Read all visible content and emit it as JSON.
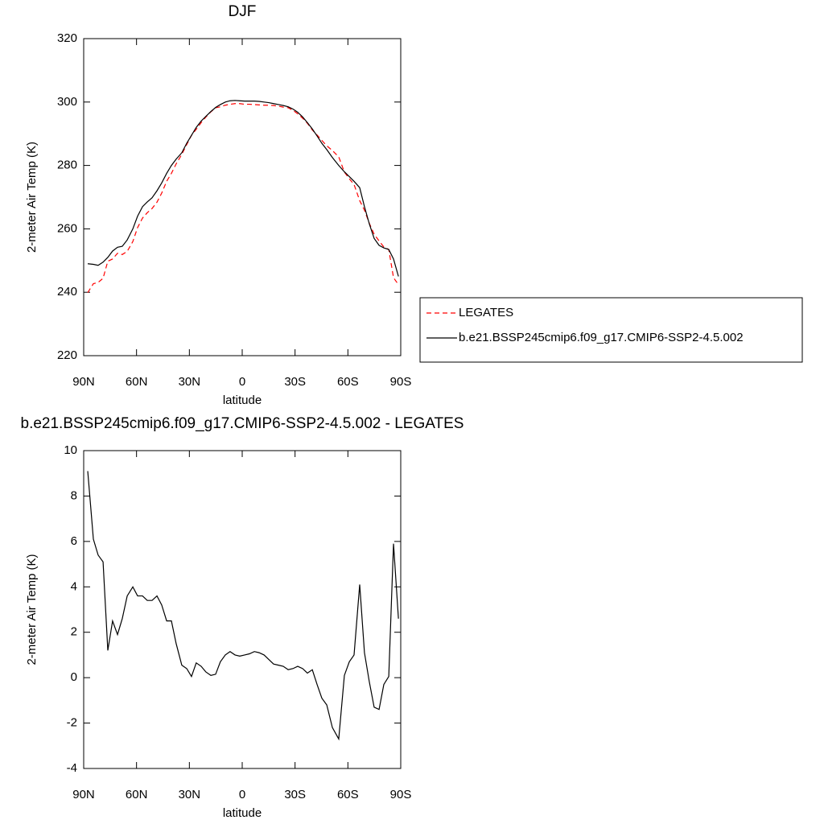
{
  "chart_data": [
    {
      "type": "line",
      "title": "DJF",
      "xlabel": "latitude",
      "ylabel": "2-meter Air Temp (K)",
      "x": [
        87.7,
        84.5,
        81.8,
        79.0,
        76.3,
        73.6,
        70.8,
        68.1,
        65.3,
        62.1,
        59.4,
        56.6,
        53.9,
        51.2,
        48.4,
        45.7,
        42.9,
        40.2,
        37.5,
        34.3,
        31.5,
        28.8,
        26.1,
        23.3,
        20.6,
        17.8,
        15.1,
        12.4,
        9.6,
        6.9,
        4.1,
        1.4,
        -1.4,
        -4.1,
        -6.9,
        -9.6,
        -12.4,
        -15.1,
        -17.8,
        -20.6,
        -23.3,
        -26.1,
        -28.8,
        -31.5,
        -34.3,
        -37.0,
        -39.8,
        -42.5,
        -45.2,
        -48.0,
        -51.2,
        -54.8,
        -58.0,
        -60.8,
        -63.5,
        -66.7,
        -69.4,
        -72.2,
        -74.9,
        -77.7,
        -80.4,
        -83.2,
        -85.9,
        -88.7
      ],
      "series": [
        {
          "name": "LEGATES",
          "color": "#ff0000",
          "dashed": true,
          "values": [
            239.9,
            242.7,
            243.1,
            244.4,
            249.8,
            250.5,
            252.3,
            251.9,
            252.9,
            256.0,
            260.4,
            263.4,
            265.1,
            266.4,
            268.4,
            271.3,
            275.0,
            277.5,
            280.5,
            283.5,
            286.6,
            289.5,
            291.4,
            293.5,
            295.3,
            296.9,
            298.2,
            298.5,
            299.0,
            299.3,
            299.5,
            299.5,
            299.3,
            299.3,
            299.2,
            299.1,
            299.0,
            299.0,
            298.9,
            298.7,
            298.4,
            298.2,
            297.4,
            296.3,
            294.9,
            293.3,
            291.2,
            289.6,
            287.9,
            286.2,
            284.7,
            282.7,
            277.9,
            275.8,
            274.0,
            268.9,
            265.9,
            261.7,
            258.3,
            256.2,
            254.3,
            253.5,
            244.6,
            242.4
          ]
        },
        {
          "name": "b.e21.BSSP245cmip6.f09_g17.CMIP6-SSP2-4.5.002",
          "color": "#000000",
          "dashed": false,
          "values": [
            249.0,
            248.8,
            248.5,
            249.5,
            251.0,
            253.0,
            254.2,
            254.5,
            256.5,
            260.0,
            264.0,
            267.0,
            268.5,
            269.8,
            272.0,
            274.5,
            277.5,
            280.0,
            282.0,
            284.0,
            287.0,
            289.5,
            292.0,
            294.0,
            295.5,
            297.0,
            298.3,
            299.2,
            300.0,
            300.4,
            300.5,
            300.4,
            300.3,
            300.3,
            300.3,
            300.2,
            300.0,
            299.8,
            299.5,
            299.2,
            298.9,
            298.5,
            297.8,
            296.8,
            295.3,
            293.5,
            291.5,
            289.3,
            287.0,
            285.0,
            282.5,
            280.0,
            278.0,
            276.5,
            275.0,
            273.0,
            267.0,
            261.5,
            257.0,
            254.8,
            254.0,
            253.5,
            250.5,
            245.0
          ]
        }
      ],
      "xlim": [
        90,
        -90
      ],
      "xticks": [
        {
          "value": 90,
          "label": "90N"
        },
        {
          "value": 60,
          "label": "60N"
        },
        {
          "value": 30,
          "label": "30N"
        },
        0,
        {
          "value": -30,
          "label": "30S"
        },
        {
          "value": -60,
          "label": "60S"
        },
        {
          "value": -90,
          "label": "90S"
        }
      ],
      "ylim": [
        220,
        320
      ],
      "yticks": [
        220,
        240,
        260,
        280,
        300,
        320
      ],
      "legend": "right"
    },
    {
      "type": "line",
      "title": "b.e21.BSSP245cmip6.f09_g17.CMIP6-SSP2-4.5.002 - LEGATES",
      "xlabel": "latitude",
      "ylabel": "2-meter Air Temp (K)",
      "x": [
        87.7,
        84.5,
        81.8,
        79.0,
        76.3,
        73.6,
        70.8,
        68.1,
        65.3,
        62.1,
        59.4,
        56.6,
        53.9,
        51.2,
        48.4,
        45.7,
        42.9,
        40.2,
        37.5,
        34.3,
        31.5,
        28.8,
        26.1,
        23.3,
        20.6,
        17.8,
        15.1,
        12.4,
        9.6,
        6.9,
        4.1,
        1.4,
        -1.4,
        -4.1,
        -6.9,
        -9.6,
        -12.4,
        -15.1,
        -17.8,
        -20.6,
        -23.3,
        -26.1,
        -28.8,
        -31.5,
        -34.3,
        -37.0,
        -39.8,
        -42.5,
        -45.2,
        -48.0,
        -51.2,
        -54.8,
        -58.0,
        -60.8,
        -63.5,
        -66.7,
        -69.4,
        -72.2,
        -74.9,
        -77.7,
        -80.4,
        -83.2,
        -85.9,
        -88.7
      ],
      "series": [
        {
          "color": "#000000",
          "dashed": false,
          "values": [
            9.1,
            6.1,
            5.4,
            5.1,
            1.2,
            2.5,
            1.9,
            2.6,
            3.6,
            4.0,
            3.6,
            3.6,
            3.4,
            3.4,
            3.6,
            3.2,
            2.5,
            2.5,
            1.5,
            0.55,
            0.4,
            0.05,
            0.65,
            0.5,
            0.25,
            0.1,
            0.15,
            0.7,
            1.0,
            1.15,
            1.0,
            0.95,
            1.0,
            1.05,
            1.15,
            1.1,
            1.0,
            0.8,
            0.6,
            0.55,
            0.5,
            0.35,
            0.4,
            0.5,
            0.4,
            0.2,
            0.35,
            -0.3,
            -0.9,
            -1.2,
            -2.2,
            -2.7,
            0.1,
            0.7,
            1.0,
            4.1,
            1.1,
            -0.2,
            -1.3,
            -1.4,
            -0.3,
            0.05,
            5.9,
            2.6
          ]
        }
      ],
      "xlim": [
        90,
        -90
      ],
      "xticks": [
        {
          "value": 90,
          "label": "90N"
        },
        {
          "value": 60,
          "label": "60N"
        },
        {
          "value": 30,
          "label": "30N"
        },
        0,
        {
          "value": -30,
          "label": "30S"
        },
        {
          "value": -60,
          "label": "60S"
        },
        {
          "value": -90,
          "label": "90S"
        }
      ],
      "ylim": [
        -4,
        10
      ],
      "yticks": [
        -4,
        -2,
        0,
        2,
        4,
        6,
        8,
        10
      ]
    }
  ]
}
